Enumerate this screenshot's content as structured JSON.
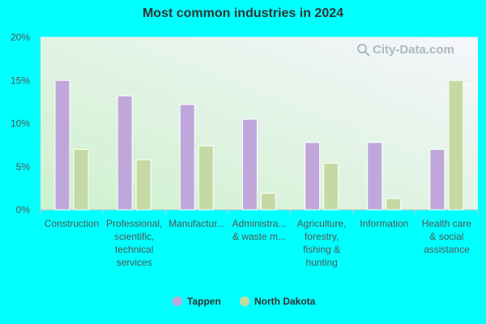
{
  "chart_data": {
    "type": "bar",
    "title": "Most common industries in 2024",
    "categories": [
      [
        "Construction"
      ],
      [
        "Professional,",
        "scientific,",
        "technical",
        "services"
      ],
      [
        "Manufactur..."
      ],
      [
        "Administra...",
        "& waste m..."
      ],
      [
        "Agriculture,",
        "forestry,",
        "fishing &",
        "hunting"
      ],
      [
        "Information"
      ],
      [
        "Health care",
        "& social",
        "assistance"
      ]
    ],
    "series": [
      {
        "name": "Tappen",
        "color": "#c0a7db",
        "values": [
          15.0,
          13.2,
          12.2,
          10.5,
          7.8,
          7.8,
          7.0
        ]
      },
      {
        "name": "North Dakota",
        "color": "#c5d9a4",
        "values": [
          7.0,
          5.8,
          7.4,
          1.9,
          5.4,
          1.3,
          15.0
        ]
      }
    ],
    "ylim": [
      0,
      20
    ],
    "yticks": [
      0,
      5,
      10,
      15,
      20
    ],
    "ytick_labels": [
      "0%",
      "5%",
      "10%",
      "15%",
      "20%"
    ],
    "xlabel": "",
    "ylabel": "",
    "grid": true,
    "legend_position": "bottom"
  },
  "watermark": {
    "text": "City-Data.com",
    "icon": "search-icon"
  },
  "colors": {
    "background": "#00ffff",
    "plot_fill_top": "#f5f5fb",
    "plot_fill_bottom": "#d2f2d2"
  }
}
